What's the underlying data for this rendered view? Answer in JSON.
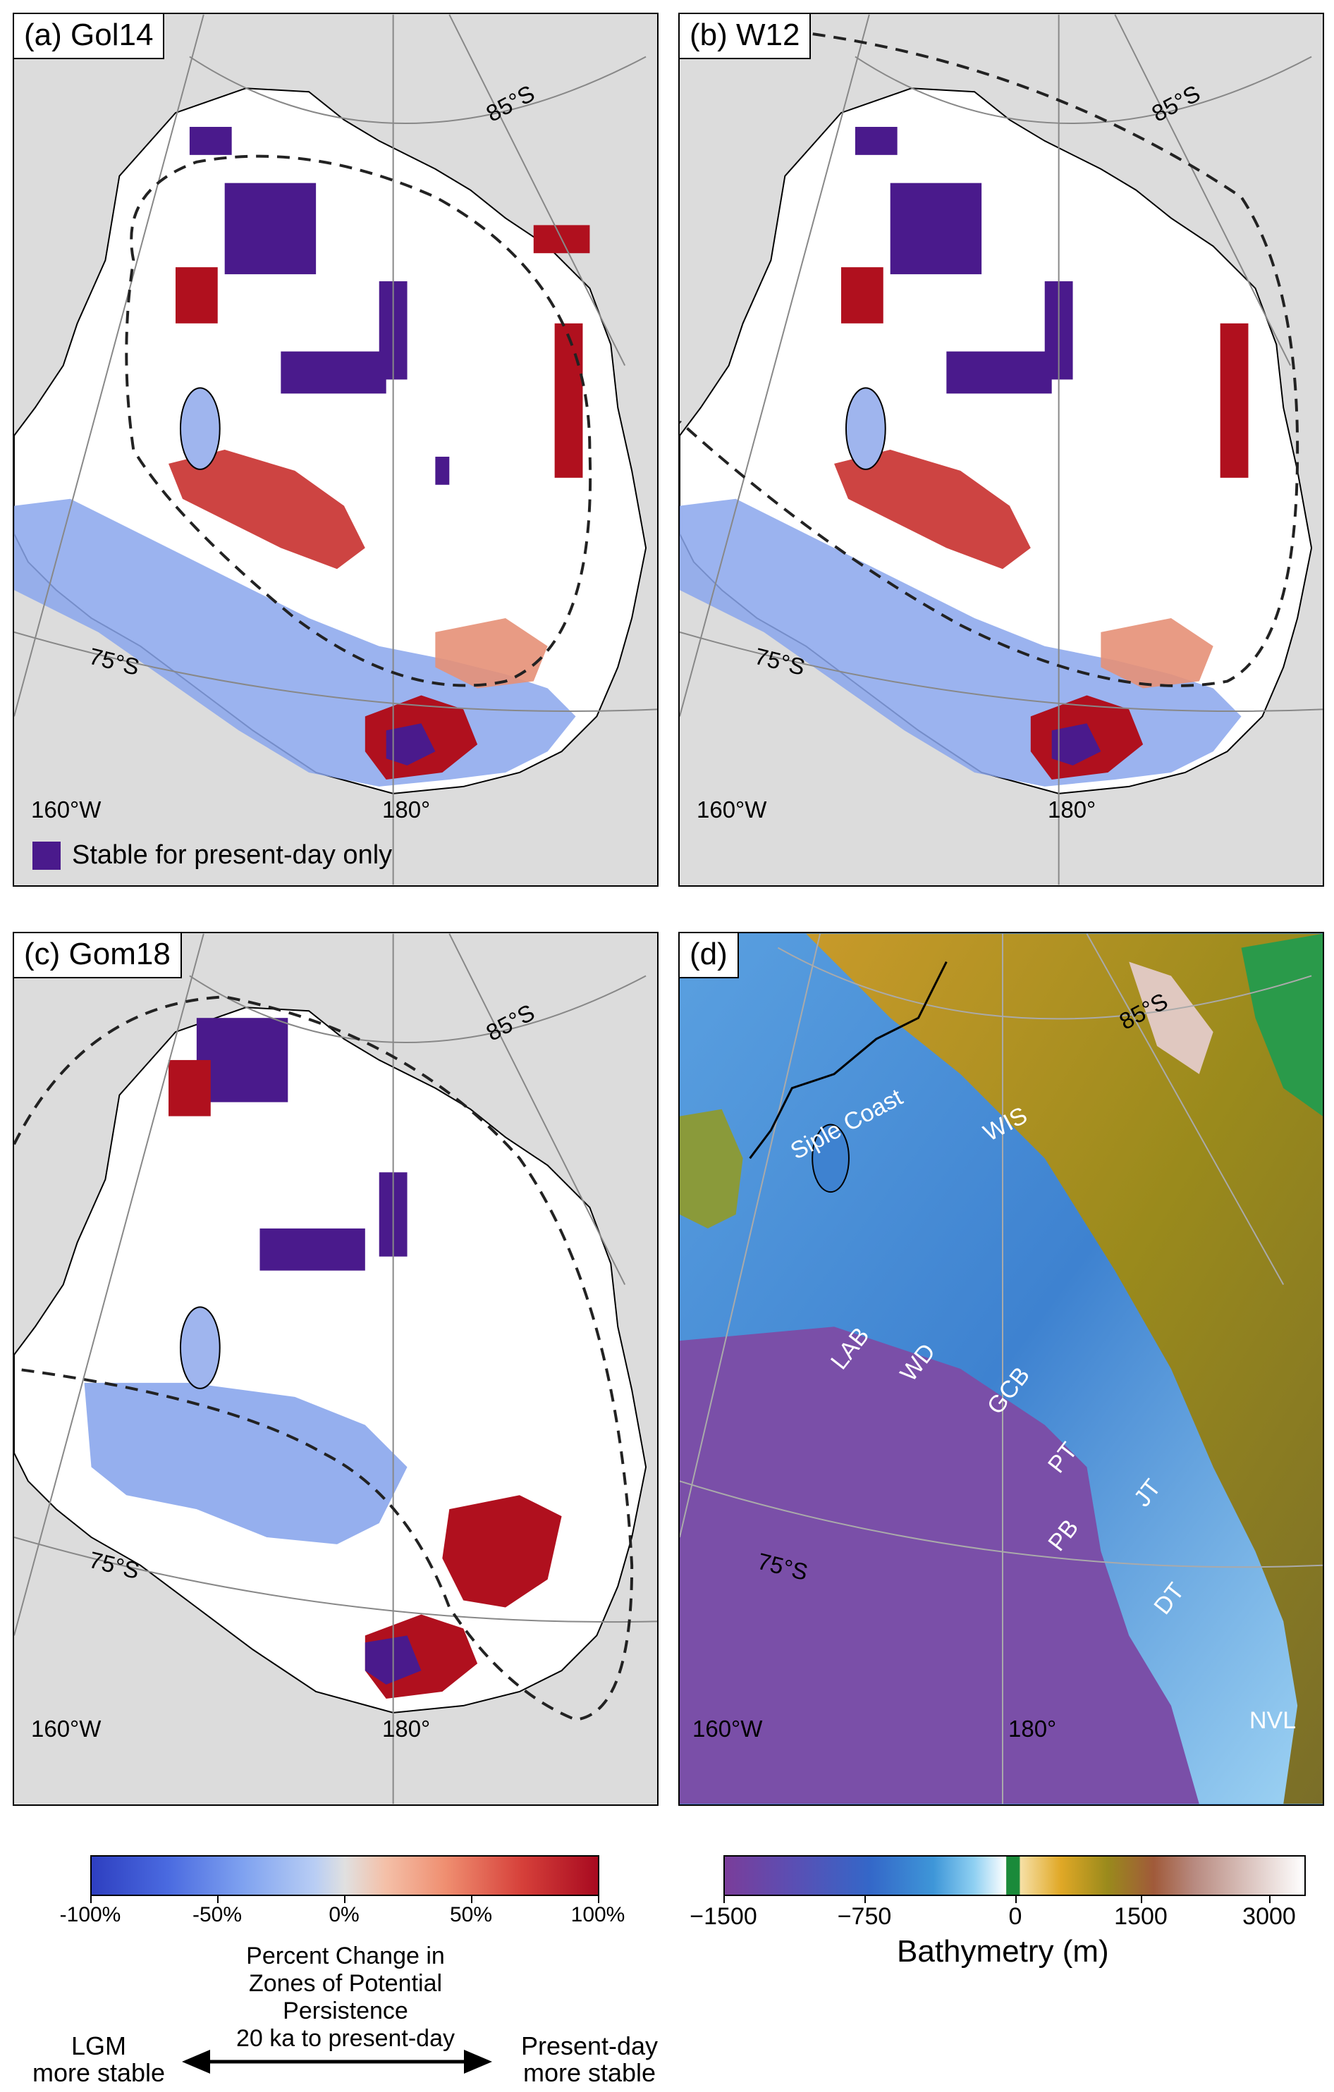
{
  "panels": {
    "a": {
      "label": "(a) Gol14"
    },
    "b": {
      "label": "(b) W12"
    },
    "c": {
      "label": "(c) Gom18"
    },
    "d": {
      "label": "(d)"
    }
  },
  "grid_labels": {
    "lat_85": "85°S",
    "lat_75": "75°S",
    "lon_160": "160°W",
    "lon_180": "180°"
  },
  "legend_note": "Stable for present-day only",
  "panel_d_labels": {
    "siple": "Siple Coast",
    "wis": "WIS",
    "lab": "LAB",
    "wd": "WD",
    "gcb": "GCB",
    "pt": "PT",
    "jt": "JT",
    "pb": "PB",
    "dt": "DT",
    "nvl": "NVL"
  },
  "colorbar_left": {
    "ticks": [
      "-100%",
      "-50%",
      "0%",
      "50%",
      "100%"
    ],
    "title": [
      "Percent Change in",
      "Zones of Potential Persistence",
      "20 ka to present-day"
    ],
    "left_label": [
      "LGM",
      "more stable"
    ],
    "right_label": [
      "Present-day",
      "more stable"
    ]
  },
  "colorbar_right": {
    "ticks": [
      "−1500",
      "−750",
      "0",
      "1500",
      "3000"
    ],
    "title": "Bathymetry (m)"
  },
  "colors": {
    "stable_present_day": "#4a1a8c",
    "land_gray": "#dcdcdc",
    "red": "#b0101e",
    "blue": "#6f8ee8"
  }
}
